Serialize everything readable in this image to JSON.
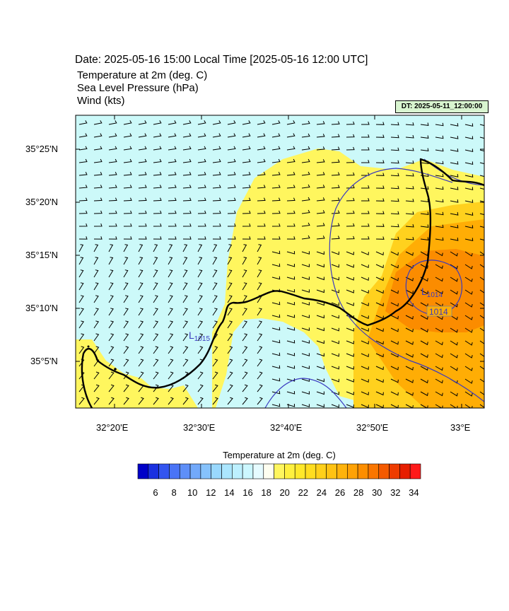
{
  "header": {
    "date_title": "Date: 2025-05-16  15:00 Local Time [2025-05-16  12:00 UTC]",
    "variables": [
      "Temperature at 2m   (deg. C)",
      "Sea Level Pressure   (hPa)",
      "Wind   (kts)"
    ],
    "dt_label": "DT: 2025-05-11_12:00:00"
  },
  "map": {
    "lat_labels": [
      "35°25'N",
      "35°20'N",
      "35°15'N",
      "35°10'N",
      "35°5'N"
    ],
    "lon_labels": [
      "32°20'E",
      "32°30'E",
      "32°40'E",
      "32°50'E",
      "33°E"
    ],
    "pressure_labels": [
      {
        "text": "L",
        "sub": "1014"
      },
      {
        "text": "1014",
        "sub": ""
      },
      {
        "text": "L",
        "sub": "1015"
      }
    ],
    "colors": {
      "sea_cyan": "#ccf9f9",
      "yellow": "#fff65e",
      "gold": "#ffd11e",
      "orange": "#ffad05",
      "dark_orange": "#fb8c00",
      "contour_blue": "#3a3ac0"
    }
  },
  "colorbar": {
    "title": "Temperature at 2m  (deg. C)",
    "colors": [
      "#0000c8",
      "#1a30e0",
      "#3355f0",
      "#4a74f6",
      "#5e8ff8",
      "#72a9fa",
      "#86c2fc",
      "#99d8fd",
      "#abe6fe",
      "#bdf0ff",
      "#ccf7ff",
      "#e6fbff",
      "#fefef0",
      "#fff65e",
      "#fff03e",
      "#ffe82a",
      "#ffdd20",
      "#ffd01a",
      "#ffc212",
      "#ffb30b",
      "#ffa205",
      "#fd8e00",
      "#fa7600",
      "#f45a00",
      "#ee3c00",
      "#e61e00",
      "#ff1a1a"
    ],
    "labels": [
      "6",
      "8",
      "10",
      "12",
      "14",
      "16",
      "18",
      "20",
      "22",
      "24",
      "26",
      "28",
      "30",
      "32",
      "34"
    ]
  }
}
